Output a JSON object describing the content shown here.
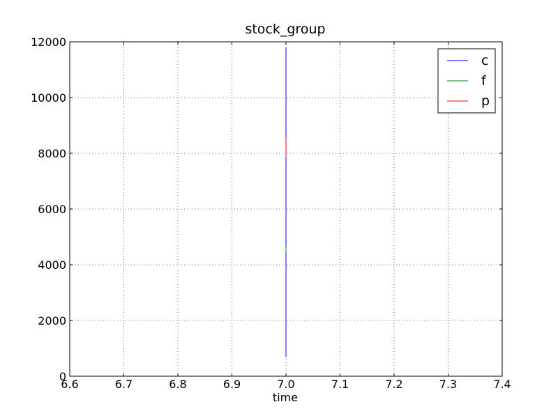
{
  "chart_data": {
    "type": "line",
    "title": "stock_group",
    "xlabel": "time",
    "ylabel": "",
    "xlim": [
      6.6,
      7.4
    ],
    "ylim": [
      0,
      12000
    ],
    "x_ticks": [
      "6.6",
      "6.7",
      "6.8",
      "6.9",
      "7.0",
      "7.1",
      "7.2",
      "7.3",
      "7.4"
    ],
    "y_ticks": [
      "0",
      "2000",
      "4000",
      "6000",
      "8000",
      "10000",
      "12000"
    ],
    "grid": true,
    "legend_position": "top-right",
    "series": [
      {
        "name": "c",
        "color": "#0000ff",
        "x": [
          7.0,
          7.0
        ],
        "y": [
          700,
          11800
        ]
      },
      {
        "name": "f",
        "color": "#008000",
        "x": [
          7.0,
          7.0
        ],
        "y": [
          4450,
          4650
        ]
      },
      {
        "name": "p",
        "color": "#ff0000",
        "x": [
          7.0,
          7.0
        ],
        "y": [
          7850,
          8550
        ]
      }
    ]
  }
}
